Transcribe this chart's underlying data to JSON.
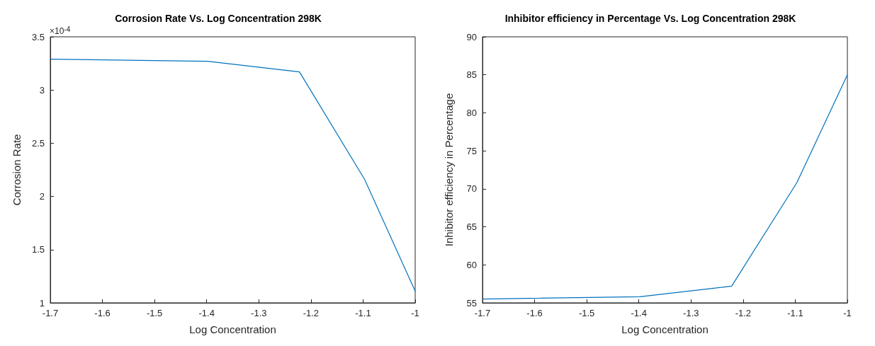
{
  "chart_data": [
    {
      "type": "line",
      "title": "Corrosion Rate Vs. Log Concentration 298K",
      "xlabel": "Log Concentration",
      "ylabel": "Corrosion Rate",
      "annotations": [
        "×10$^{-4}$"
      ],
      "x": [
        -1.699,
        -1.398,
        -1.222,
        -1.097,
        -1
      ],
      "series": [
        {
          "color": "#0072bd",
          "values": [
            3.29,
            3.27,
            3.17,
            2.16,
            1.11
          ]
        }
      ],
      "xlim": [
        -1.7,
        -1
      ],
      "xticks": [
        -1.7,
        -1.6,
        -1.5,
        -1.4,
        -1.3,
        -1.2,
        -1.1,
        -1
      ],
      "ylim": [
        1,
        3.5
      ],
      "yticks": [
        1,
        1.5,
        2,
        2.5,
        3,
        3.5
      ],
      "grid": false,
      "marker": "none",
      "line_style": "solid"
    },
    {
      "type": "line",
      "title": "Inhibitor efficiency in Percentage Vs. Log Concentration 298K",
      "xlabel": "Log Concentration",
      "ylabel": "Inhibitor efficiency in Percentage",
      "x": [
        -1.699,
        -1.398,
        -1.222,
        -1.097,
        -1
      ],
      "series": [
        {
          "color": "#0072bd",
          "values": [
            55.5,
            55.8,
            57.2,
            70.8,
            85
          ]
        }
      ],
      "xlim": [
        -1.7,
        -1
      ],
      "xticks": [
        -1.7,
        -1.6,
        -1.5,
        -1.4,
        -1.3,
        -1.2,
        -1.1,
        -1
      ],
      "ylim": [
        55,
        90
      ],
      "yticks": [
        55,
        60,
        65,
        70,
        75,
        80,
        85,
        90
      ],
      "grid": false,
      "marker": "none",
      "line_style": "solid"
    }
  ]
}
